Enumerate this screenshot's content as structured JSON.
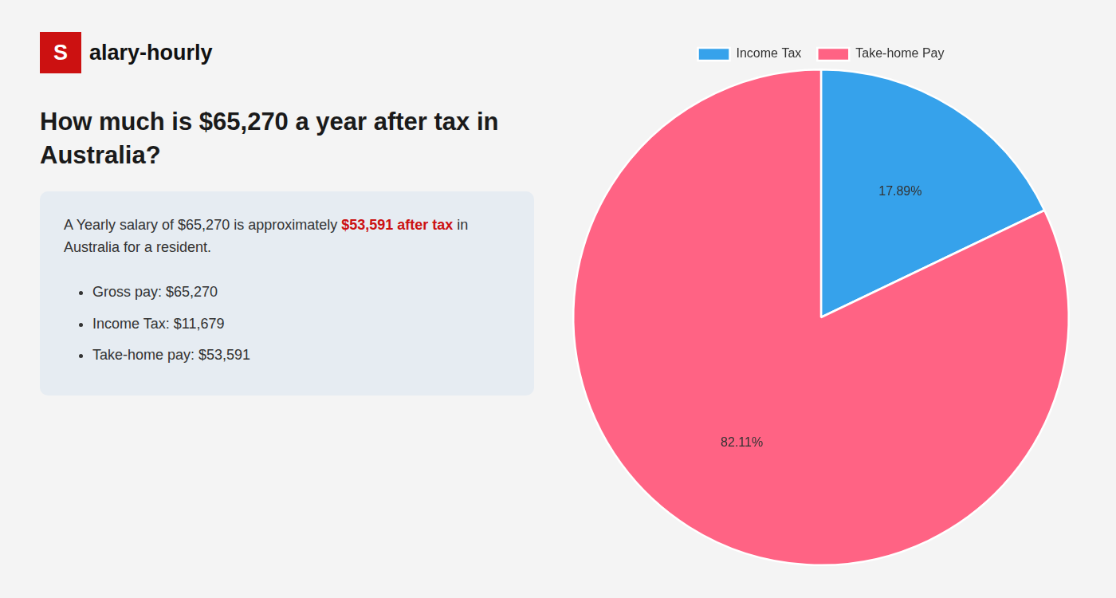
{
  "chart_data": {
    "type": "pie",
    "title": "How much is $65,270 a year after tax in Australia?",
    "categories": [
      "Income Tax",
      "Take-home Pay"
    ],
    "values": [
      17.89,
      82.11
    ],
    "value_labels": [
      "17.89%",
      "82.11%"
    ],
    "data_labels": true,
    "legend": "top",
    "annotations": [
      "S",
      "alary-hourly",
      "A Yearly salary of $65,270 is approximately",
      "$53,591 after tax",
      "in",
      "Australia for a resident.",
      "Gross pay: $65,270",
      "Income Tax: $11,679",
      "Take-home pay: $53,591"
    ]
  }
}
